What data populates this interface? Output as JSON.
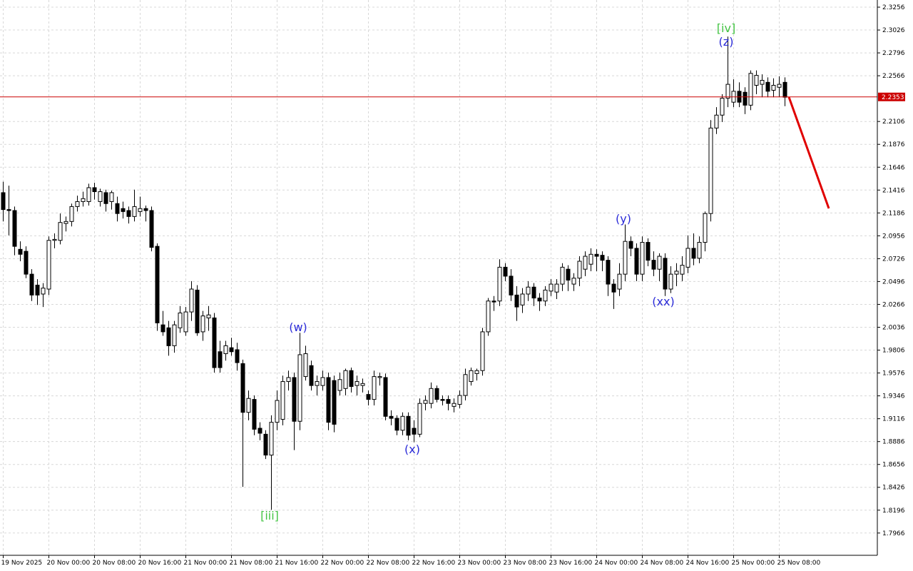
{
  "chart_data": {
    "type": "candlestick",
    "categories": [
      "19 Nov 2025",
      null,
      null,
      null,
      null,
      null,
      null,
      null,
      "20 Nov 00:00",
      null,
      null,
      null,
      null,
      null,
      null,
      null,
      "20 Nov 08:00",
      null,
      null,
      null,
      null,
      null,
      null,
      null,
      "20 Nov 16:00",
      null,
      null,
      null,
      null,
      null,
      null,
      null,
      "21 Nov 00:00",
      null,
      null,
      null,
      null,
      null,
      null,
      null,
      "21 Nov 08:00",
      null,
      null,
      null,
      null,
      null,
      null,
      null,
      "21 Nov 16:00",
      null,
      null,
      null,
      null,
      null,
      null,
      null,
      "22 Nov 00:00",
      null,
      null,
      null,
      null,
      null,
      null,
      null,
      "22 Nov 08:00",
      null,
      null,
      null,
      null,
      null,
      null,
      null,
      "22 Nov 16:00",
      null,
      null,
      null,
      null,
      null,
      null,
      null,
      "23 Nov 00:00",
      null,
      null,
      null,
      null,
      null,
      null,
      null,
      "23 Nov 08:00",
      null,
      null,
      null,
      null,
      null,
      null,
      null,
      "23 Nov 16:00",
      null,
      null,
      null,
      null,
      null,
      null,
      null,
      "24 Nov 00:00",
      null,
      null,
      null,
      null,
      null,
      null,
      null,
      "24 Nov 08:00",
      null,
      null,
      null,
      null,
      null,
      null,
      null,
      "24 Nov 16:00",
      null,
      null,
      null,
      null,
      null,
      null,
      null,
      "25 Nov 00:00",
      null,
      null,
      null,
      null,
      null,
      null,
      null,
      "25 Nov 08:00",
      null
    ],
    "open": [
      2.139,
      2.122,
      2.121,
      2.082,
      2.08,
      2.057,
      2.046,
      2.037,
      2.042,
      2.091,
      2.091,
      2.108,
      2.11,
      2.125,
      2.13,
      2.13,
      2.144,
      2.13,
      2.139,
      2.13,
      2.128,
      2.123,
      2.121,
      2.115,
      2.12,
      2.123,
      2.121,
      2.085,
      2.006,
      2.003,
      1.985,
      2.003,
      1.999,
      2.019,
      2.041,
      1.999,
      2.013,
      2.013,
      1.979,
      1.977,
      1.983,
      1.981,
      1.967,
      1.918,
      1.931,
      1.902,
      1.896,
      1.875,
      1.908,
      1.911,
      1.949,
      1.953,
      1.909,
      1.954,
      1.965,
      1.945,
      1.945,
      1.953,
      1.95,
      1.94,
      1.942,
      1.96,
      1.945,
      1.945,
      1.936,
      1.931,
      1.953,
      1.953,
      1.914,
      1.912,
      1.9,
      1.914,
      1.902,
      1.896,
      1.927,
      1.927,
      1.942,
      1.931,
      1.931,
      1.924,
      1.926,
      1.935,
      1.949,
      1.957,
      1.96,
      1.999,
      2.03,
      2.03,
      2.064,
      2.055,
      2.036,
      2.026,
      2.037,
      2.044,
      2.033,
      2.03,
      2.04,
      2.039,
      2.047,
      2.062,
      2.047,
      2.053,
      2.062,
      2.067,
      2.077,
      2.076,
      2.071,
      2.047,
      2.042,
      2.057,
      2.09,
      2.083,
      2.057,
      2.089,
      2.071,
      2.062,
      2.073,
      2.042,
      2.057,
      2.057,
      2.064,
      2.083,
      2.073,
      2.089,
      2.118,
      2.204,
      2.217,
      2.234,
      2.23,
      2.241,
      2.24,
      2.227,
      2.247,
      2.248,
      2.25,
      2.242,
      2.245,
      2.25
    ],
    "high": [
      2.15,
      2.146,
      2.125,
      2.09,
      2.085,
      2.062,
      2.052,
      2.048,
      2.095,
      2.098,
      2.118,
      2.115,
      2.128,
      2.136,
      2.14,
      2.148,
      2.149,
      2.143,
      2.142,
      2.141,
      2.135,
      2.13,
      2.125,
      2.142,
      2.135,
      2.126,
      2.125,
      2.088,
      2.02,
      2.01,
      2.01,
      2.025,
      2.024,
      2.05,
      2.046,
      2.02,
      2.025,
      2.018,
      1.99,
      1.99,
      1.993,
      1.988,
      1.971,
      1.94,
      1.935,
      1.908,
      1.9,
      1.915,
      1.94,
      1.955,
      1.96,
      1.958,
      1.998,
      1.985,
      1.97,
      1.955,
      1.96,
      1.958,
      1.955,
      1.958,
      1.962,
      1.963,
      1.955,
      1.952,
      1.94,
      1.96,
      1.958,
      1.957,
      1.92,
      1.915,
      1.918,
      1.918,
      1.91,
      1.932,
      1.935,
      1.948,
      1.945,
      1.935,
      1.935,
      1.932,
      1.94,
      1.962,
      1.963,
      1.962,
      2.003,
      2.033,
      2.035,
      2.072,
      2.068,
      2.062,
      2.045,
      2.043,
      2.05,
      2.048,
      2.038,
      2.045,
      2.052,
      2.052,
      2.068,
      2.066,
      2.058,
      2.075,
      2.08,
      2.083,
      2.082,
      2.08,
      2.075,
      2.052,
      2.068,
      2.107,
      2.095,
      2.088,
      2.095,
      2.093,
      2.08,
      2.078,
      2.078,
      2.065,
      2.068,
      2.075,
      2.096,
      2.098,
      2.095,
      2.12,
      2.212,
      2.225,
      2.238,
      2.296,
      2.253,
      2.25,
      2.245,
      2.262,
      2.262,
      2.258,
      2.255,
      2.254,
      2.256,
      2.255
    ],
    "low": [
      2.11,
      2.096,
      2.076,
      2.07,
      2.053,
      2.03,
      2.026,
      2.024,
      2.036,
      2.083,
      2.087,
      2.1,
      2.105,
      2.12,
      2.125,
      2.126,
      2.132,
      2.125,
      2.12,
      2.122,
      2.11,
      2.113,
      2.108,
      2.11,
      2.115,
      2.11,
      2.08,
      2.0,
      1.995,
      1.975,
      1.978,
      1.998,
      1.995,
      2.01,
      1.995,
      1.99,
      2.0,
      1.958,
      1.958,
      1.97,
      1.975,
      1.96,
      1.843,
      1.91,
      1.895,
      1.89,
      1.871,
      1.82,
      1.9,
      1.905,
      1.94,
      1.88,
      1.9,
      1.95,
      1.94,
      1.935,
      1.94,
      1.9,
      1.898,
      1.935,
      1.935,
      1.938,
      1.935,
      1.938,
      1.925,
      1.925,
      1.945,
      1.91,
      1.905,
      1.895,
      1.895,
      1.89,
      1.888,
      1.893,
      1.92,
      1.922,
      1.928,
      1.925,
      1.92,
      1.918,
      1.922,
      1.93,
      1.945,
      1.95,
      1.955,
      1.995,
      2.02,
      2.025,
      2.05,
      2.03,
      2.01,
      2.018,
      2.03,
      2.025,
      2.02,
      2.025,
      2.035,
      2.032,
      2.04,
      2.04,
      2.04,
      2.045,
      2.055,
      2.06,
      2.06,
      2.06,
      2.035,
      2.022,
      2.035,
      2.05,
      2.075,
      2.05,
      2.05,
      2.065,
      2.055,
      2.05,
      2.035,
      2.038,
      2.045,
      2.05,
      2.058,
      2.066,
      2.068,
      2.08,
      2.11,
      2.198,
      2.21,
      2.225,
      2.225,
      2.225,
      2.218,
      2.222,
      2.238,
      2.235,
      2.235,
      2.235,
      2.235,
      2.226
    ],
    "close": [
      2.122,
      2.121,
      2.085,
      2.077,
      2.057,
      2.036,
      2.036,
      2.043,
      2.091,
      2.092,
      2.109,
      2.11,
      2.125,
      2.13,
      2.133,
      2.144,
      2.14,
      2.14,
      2.128,
      2.139,
      2.118,
      2.12,
      2.115,
      2.125,
      2.123,
      2.121,
      2.084,
      2.008,
      1.999,
      1.985,
      2.006,
      2.018,
      2.019,
      2.042,
      1.998,
      2.015,
      2.016,
      1.963,
      1.963,
      1.985,
      1.979,
      1.968,
      1.918,
      1.932,
      1.901,
      1.897,
      1.875,
      1.908,
      1.93,
      1.949,
      1.953,
      1.909,
      1.976,
      1.977,
      1.945,
      1.949,
      1.953,
      1.908,
      1.906,
      1.951,
      1.96,
      1.944,
      1.949,
      1.947,
      1.931,
      1.954,
      1.954,
      1.914,
      1.912,
      1.9,
      1.914,
      1.895,
      1.896,
      1.927,
      1.93,
      1.942,
      1.931,
      1.93,
      1.927,
      1.927,
      1.935,
      1.956,
      1.96,
      1.96,
      1.999,
      2.03,
      2.029,
      2.064,
      2.055,
      2.036,
      2.024,
      2.037,
      2.044,
      2.033,
      2.03,
      2.041,
      2.047,
      2.047,
      2.064,
      2.051,
      2.053,
      2.07,
      2.075,
      2.077,
      2.075,
      2.071,
      2.047,
      2.039,
      2.057,
      2.09,
      2.083,
      2.057,
      2.089,
      2.071,
      2.062,
      2.075,
      2.042,
      2.057,
      2.06,
      2.066,
      2.083,
      2.073,
      2.089,
      2.118,
      2.204,
      2.217,
      2.234,
      2.248,
      2.241,
      2.23,
      2.227,
      2.259,
      2.257,
      2.252,
      2.241,
      2.247,
      2.248,
      2.235
    ],
    "ylim": [
      1.7742,
      2.3328
    ],
    "yticks": [
      2.3256,
      2.3026,
      2.2796,
      2.2566,
      2.2106,
      2.1876,
      2.1646,
      2.1416,
      2.1186,
      2.0956,
      2.0726,
      2.0496,
      2.0266,
      2.0036,
      1.9806,
      1.9576,
      1.9346,
      1.9116,
      1.8886,
      1.8656,
      1.8426,
      1.8196,
      1.7966
    ],
    "grid": true,
    "current_price": 2.2353,
    "current_price_color": "#cc0000",
    "up_color": "#ffffff",
    "down_color": "#000000",
    "annotations": [
      {
        "text": "[iii]",
        "color": "#44c444"
      },
      {
        "text": "(w)",
        "color": "#2a2ad8"
      },
      {
        "text": "(x)",
        "color": "#2a2ad8"
      },
      {
        "text": "(y)",
        "color": "#2a2ad8"
      },
      {
        "text": "(xx)",
        "color": "#2a2ad8"
      },
      {
        "text": "(z)",
        "color": "#2a2ad8"
      },
      {
        "text": "[iv]",
        "color": "#44c444"
      }
    ]
  }
}
